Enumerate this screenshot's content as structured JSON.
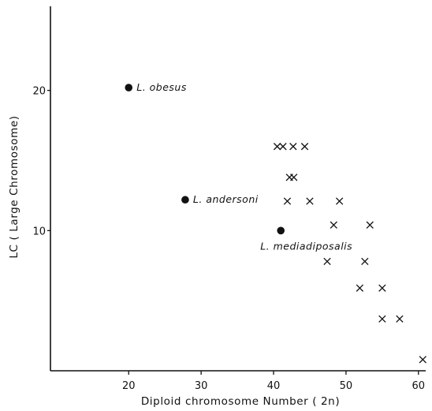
{
  "chart_data": {
    "type": "scatter",
    "title": "",
    "xlabel": "Diploid  chromosome  Number ( 2n)",
    "ylabel": "LC ( Large  Chromosome)",
    "xlim": [
      9.2,
      61
    ],
    "ylim": [
      0,
      26
    ],
    "x_ticks": [
      "20",
      "30",
      "40",
      "50",
      "60"
    ],
    "y_ticks": [
      "10",
      "20"
    ],
    "grid": false,
    "legend": "none",
    "series": [
      {
        "marker": "filled-circle",
        "color": "#111111",
        "points": [
          {
            "x": 20,
            "y": 20.2,
            "label": "L. obesus"
          },
          {
            "x": 27.8,
            "y": 12.2,
            "label": "L. andersoni"
          },
          {
            "x": 41,
            "y": 10,
            "label": "L. mediadiposalis"
          }
        ]
      },
      {
        "marker": "x",
        "color": "#111111",
        "points": [
          {
            "x": 40.5,
            "y": 16
          },
          {
            "x": 41.3,
            "y": 16
          },
          {
            "x": 42.7,
            "y": 16
          },
          {
            "x": 44.3,
            "y": 16
          },
          {
            "x": 42.2,
            "y": 13.8
          },
          {
            "x": 42.8,
            "y": 13.8
          },
          {
            "x": 41.9,
            "y": 12.1
          },
          {
            "x": 45,
            "y": 12.1
          },
          {
            "x": 49.1,
            "y": 12.1
          },
          {
            "x": 48.3,
            "y": 10.4
          },
          {
            "x": 53.3,
            "y": 10.4
          },
          {
            "x": 47.4,
            "y": 7.8
          },
          {
            "x": 52.6,
            "y": 7.8
          },
          {
            "x": 51.9,
            "y": 5.9
          },
          {
            "x": 55,
            "y": 5.9
          },
          {
            "x": 55,
            "y": 3.7
          },
          {
            "x": 57.4,
            "y": 3.7
          },
          {
            "x": 60.6,
            "y": 0.8
          }
        ]
      }
    ]
  }
}
